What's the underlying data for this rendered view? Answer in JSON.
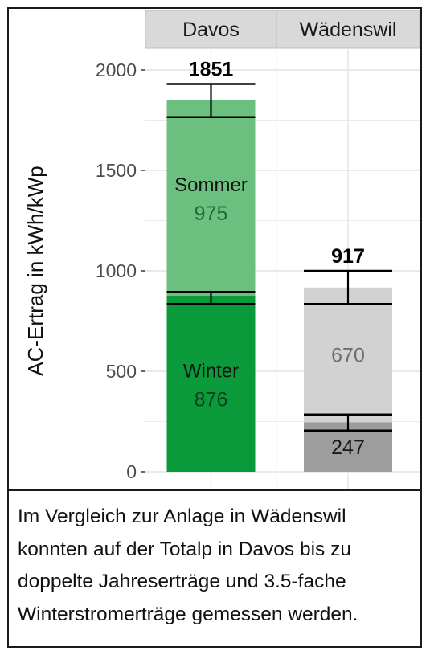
{
  "chart_data": {
    "type": "bar",
    "stacked": true,
    "panels": [
      "Davos",
      "Wädenswil"
    ],
    "ylabel": "AC-Ertrag in kWh/kWp",
    "ylim": [
      0,
      2100
    ],
    "yticks": [
      0,
      500,
      1000,
      1500,
      2000
    ],
    "grid": true,
    "bars": [
      {
        "panel": "Davos",
        "total": 1851,
        "total_label": "1851",
        "error_total": [
          1765,
          1930
        ],
        "error_split": [
          835,
          895
        ],
        "segments": [
          {
            "label": "Winter",
            "value": 876,
            "value_label": "876",
            "color": "#0a9a3a",
            "text_color": "#0f3d1f"
          },
          {
            "label": "Sommer",
            "value": 975,
            "value_label": "975",
            "color": "#6cc07f",
            "text_color": "#1f6b38"
          }
        ]
      },
      {
        "panel": "Wädenswil",
        "total": 917,
        "total_label": "917",
        "error_total": [
          835,
          1000
        ],
        "error_split": [
          205,
          285
        ],
        "segments": [
          {
            "label": "",
            "value": 247,
            "value_label": "247",
            "color": "#9d9d9d",
            "text_color": "#1a1a1a"
          },
          {
            "label": "",
            "value": 670,
            "value_label": "670",
            "color": "#d2d2d2",
            "text_color": "#6e6e6e"
          }
        ]
      }
    ]
  },
  "caption": "Im Vergleich zur Anlage in Wädenswil\nkonnten auf der Totalp in Davos bis zu\ndoppelte Jahreserträge und 3.5-fache\nWinterstromerträge gemessen werden.",
  "colors": {
    "strip_bg": "#d9d9d9",
    "grid": "#e4e4e4",
    "axis_text": "#4d4d4d",
    "error_bar": "#000000"
  }
}
